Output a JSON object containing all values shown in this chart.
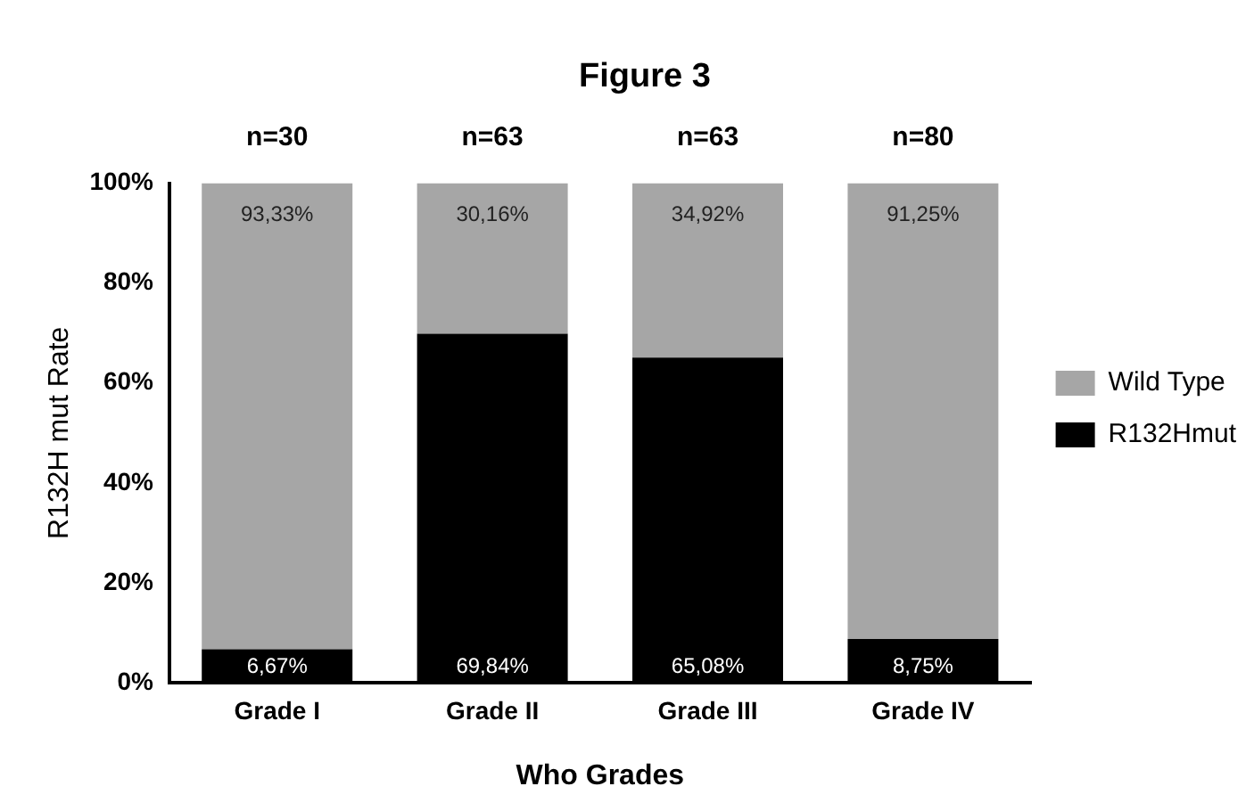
{
  "chart_data": {
    "type": "bar",
    "title": "Figure 3",
    "xlabel": "Who Grades",
    "ylabel": "R132H mut Rate",
    "categories": [
      "Grade I",
      "Grade II",
      "Grade III",
      "Grade IV"
    ],
    "series": [
      {
        "name": "R132Hmut",
        "color": "#000000",
        "values": [
          6.67,
          69.84,
          65.08,
          8.75
        ],
        "value_labels": [
          "6,67%",
          "69,84%",
          "65,08%",
          "8,75%"
        ]
      },
      {
        "name": "Wild Type",
        "color": "#a6a6a6",
        "values": [
          93.33,
          30.16,
          34.92,
          91.25
        ],
        "value_labels": [
          "93,33%",
          "30,16%",
          "34,92%",
          "91,25%"
        ]
      }
    ],
    "stacked": true,
    "ylim": [
      0,
      100
    ],
    "yticks": [
      {
        "value": 0,
        "label": "0%"
      },
      {
        "value": 20,
        "label": "20%"
      },
      {
        "value": 40,
        "label": "40%"
      },
      {
        "value": 60,
        "label": "60%"
      },
      {
        "value": 80,
        "label": "80%"
      },
      {
        "value": 100,
        "label": "100%"
      }
    ],
    "annotations": [
      "n=30",
      "n=63",
      "n=63",
      "n=80"
    ],
    "grid": false,
    "legend": "right"
  }
}
